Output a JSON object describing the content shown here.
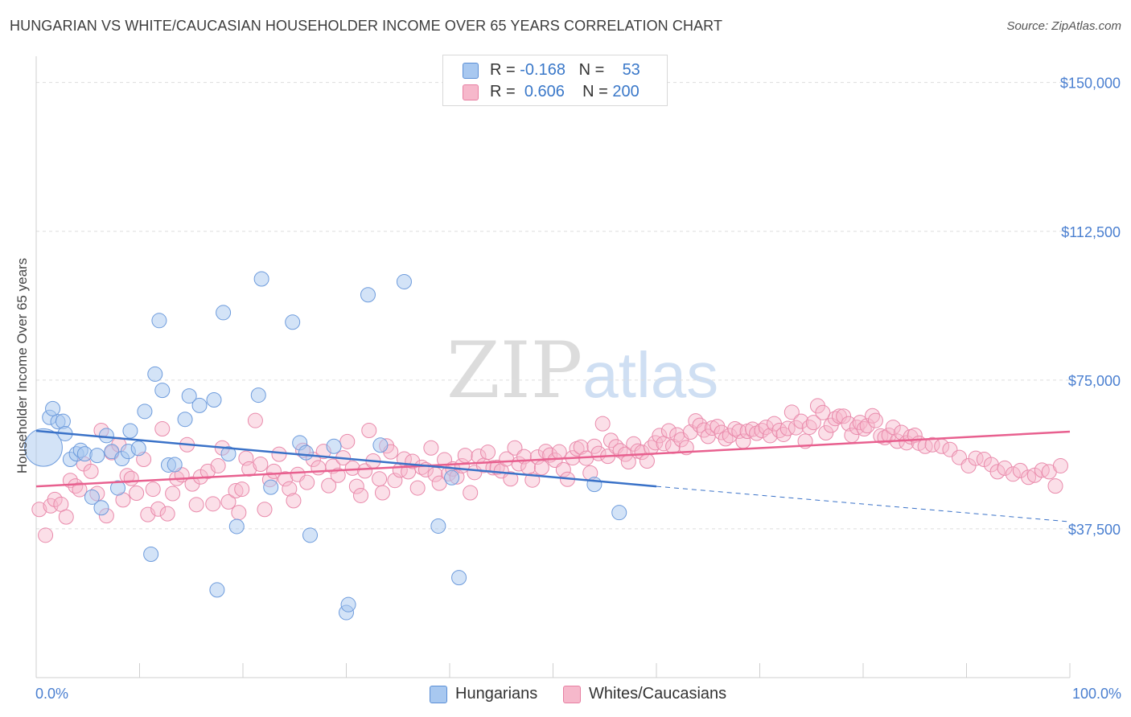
{
  "title": "HUNGARIAN VS WHITE/CAUCASIAN HOUSEHOLDER INCOME OVER 65 YEARS CORRELATION CHART",
  "source": "Source: ZipAtlas.com",
  "watermark": {
    "zip": "ZIP",
    "atlas": "atlas"
  },
  "legend": {
    "rows": [
      {
        "r_label": "R = ",
        "r_value": "-0.168",
        "n_label": "N = ",
        "n_value": "53",
        "color": "#a8c8f0",
        "border": "#5b8fd6"
      },
      {
        "r_label": "R = ",
        "r_value": "0.606",
        "n_label": "N = ",
        "n_value": "200",
        "color": "#f6b8cb",
        "border": "#e77fa2"
      }
    ]
  },
  "bottom_legend": [
    {
      "label": "Hungarians",
      "color": "#a8c8f0",
      "border": "#5b8fd6"
    },
    {
      "label": "Whites/Caucasians",
      "color": "#f6b8cb",
      "border": "#e77fa2"
    }
  ],
  "colors": {
    "blue": "#3a72c8",
    "pink": "#e8608f",
    "grid": "#dddddd",
    "tick_text": "#4a7fd0"
  },
  "chart_data": {
    "type": "scatter",
    "title": "HUNGARIAN VS WHITE/CAUCASIAN HOUSEHOLDER INCOME OVER 65 YEARS CORRELATION CHART",
    "xlabel": "",
    "ylabel": "Householder Income Over 65 years",
    "xlim": [
      0,
      100
    ],
    "ylim": [
      0,
      155000
    ],
    "x_ticks": [
      "0.0%",
      "100.0%"
    ],
    "y_ticks": [
      {
        "value": 37500,
        "label": "$37,500"
      },
      {
        "value": 75000,
        "label": "$75,000"
      },
      {
        "value": 112500,
        "label": "$112,500"
      },
      {
        "value": 150000,
        "label": "$150,000"
      }
    ],
    "grid": true,
    "series": [
      {
        "name": "Hungarians",
        "trend": {
          "x0": 0,
          "y0": 62200,
          "x1": 60,
          "y1": 48200,
          "dash_to_x": 100,
          "dash_to_y": 39300
        },
        "points": [
          [
            0.7,
            58000,
            2.6
          ],
          [
            1.3,
            65600,
            1.0
          ],
          [
            1.6,
            67800,
            1.0
          ],
          [
            2.1,
            64500,
            1.0
          ],
          [
            2.6,
            64600,
            1.0
          ],
          [
            2.8,
            61500,
            1.0
          ],
          [
            3.3,
            55000,
            1.0
          ],
          [
            3.9,
            56400,
            1.0
          ],
          [
            4.3,
            57300,
            1.0
          ],
          [
            4.7,
            56400,
            1.0
          ],
          [
            5.4,
            45500,
            1.0
          ],
          [
            5.9,
            56000,
            1.0
          ],
          [
            6.3,
            42800,
            1.0
          ],
          [
            6.8,
            61000,
            1.0
          ],
          [
            7.3,
            57000,
            1.0
          ],
          [
            7.9,
            47800,
            1.0
          ],
          [
            8.3,
            55200,
            1.0
          ],
          [
            8.9,
            57000,
            1.0
          ],
          [
            9.1,
            62200,
            1.0
          ],
          [
            9.9,
            57800,
            1.0
          ],
          [
            10.5,
            67100,
            1.0
          ],
          [
            11.1,
            31100,
            1.0
          ],
          [
            11.5,
            76500,
            1.0
          ],
          [
            11.9,
            90000,
            1.0
          ],
          [
            12.2,
            72400,
            1.0
          ],
          [
            12.8,
            53600,
            1.0
          ],
          [
            13.4,
            53700,
            1.0
          ],
          [
            14.4,
            65100,
            1.0
          ],
          [
            14.8,
            71000,
            1.0
          ],
          [
            15.8,
            68600,
            1.0
          ],
          [
            17.2,
            70000,
            1.0
          ],
          [
            17.5,
            22100,
            1.0
          ],
          [
            18.1,
            92000,
            1.0
          ],
          [
            18.6,
            56400,
            1.0
          ],
          [
            19.4,
            38100,
            1.0
          ],
          [
            21.5,
            71200,
            1.0
          ],
          [
            21.8,
            100500,
            1.0
          ],
          [
            22.7,
            48000,
            1.0
          ],
          [
            24.8,
            89600,
            1.0
          ],
          [
            25.5,
            59200,
            1.0
          ],
          [
            26.1,
            56700,
            1.0
          ],
          [
            26.5,
            35900,
            1.0
          ],
          [
            28.8,
            58300,
            1.0
          ],
          [
            30.0,
            16400,
            1.0
          ],
          [
            30.2,
            18400,
            1.0
          ],
          [
            32.1,
            96500,
            1.0
          ],
          [
            33.3,
            58600,
            1.0
          ],
          [
            35.6,
            99800,
            1.0
          ],
          [
            38.9,
            38200,
            1.0
          ],
          [
            40.2,
            50400,
            1.0
          ],
          [
            40.9,
            25200,
            1.0
          ],
          [
            54.0,
            48700,
            1.0
          ],
          [
            56.4,
            41600,
            1.0
          ]
        ]
      },
      {
        "name": "Whites/Caucasians",
        "trend": {
          "x0": 0,
          "y0": 48200,
          "x1": 100,
          "y1": 62000
        },
        "points": [
          [
            0.3,
            42400
          ],
          [
            0.9,
            35900
          ],
          [
            1.4,
            43300
          ],
          [
            1.8,
            44900
          ],
          [
            2.4,
            43700
          ],
          [
            2.9,
            40500
          ],
          [
            3.3,
            49700
          ],
          [
            3.8,
            48300
          ],
          [
            4.2,
            47400
          ],
          [
            4.6,
            53900
          ],
          [
            5.3,
            52000
          ],
          [
            5.9,
            46400
          ],
          [
            6.3,
            62300
          ],
          [
            6.8,
            40800
          ],
          [
            7.3,
            56700
          ],
          [
            8.0,
            58700
          ],
          [
            8.4,
            44800
          ],
          [
            8.8,
            50900
          ],
          [
            9.2,
            50200
          ],
          [
            9.7,
            46500
          ],
          [
            10.4,
            55000
          ],
          [
            10.8,
            41100
          ],
          [
            11.3,
            47500
          ],
          [
            11.8,
            42500
          ],
          [
            12.2,
            62700
          ],
          [
            12.7,
            41300
          ],
          [
            13.2,
            46400
          ],
          [
            13.6,
            50200
          ],
          [
            14.1,
            51100
          ],
          [
            14.6,
            58700
          ],
          [
            15.1,
            48800
          ],
          [
            15.5,
            43600
          ],
          [
            15.9,
            50600
          ],
          [
            16.6,
            52000
          ],
          [
            17.1,
            43800
          ],
          [
            17.6,
            53400
          ],
          [
            18.0,
            57900
          ],
          [
            18.6,
            44300
          ],
          [
            19.3,
            47100
          ],
          [
            19.9,
            47500
          ],
          [
            19.6,
            41600
          ],
          [
            20.3,
            55300
          ],
          [
            20.6,
            52600
          ],
          [
            21.2,
            64800
          ],
          [
            21.7,
            53800
          ],
          [
            22.1,
            42400
          ],
          [
            22.6,
            49900
          ],
          [
            23.0,
            52000
          ],
          [
            23.5,
            56300
          ],
          [
            24.1,
            50100
          ],
          [
            24.5,
            47600
          ],
          [
            24.9,
            44600
          ],
          [
            25.3,
            51200
          ],
          [
            25.8,
            57300
          ],
          [
            26.2,
            49200
          ],
          [
            26.8,
            55000
          ],
          [
            27.3,
            52900
          ],
          [
            27.8,
            57000
          ],
          [
            28.3,
            48400
          ],
          [
            28.7,
            53300
          ],
          [
            29.2,
            51000
          ],
          [
            29.7,
            55400
          ],
          [
            30.1,
            59500
          ],
          [
            30.6,
            52800
          ],
          [
            31.0,
            48200
          ],
          [
            31.4,
            45900
          ],
          [
            31.8,
            52100
          ],
          [
            32.2,
            62300
          ],
          [
            32.6,
            54600
          ],
          [
            33.2,
            50100
          ],
          [
            33.5,
            46600
          ],
          [
            33.9,
            58400
          ],
          [
            34.3,
            56900
          ],
          [
            34.7,
            49700
          ],
          [
            35.2,
            52300
          ],
          [
            35.6,
            55100
          ],
          [
            36.0,
            51900
          ],
          [
            36.4,
            54500
          ],
          [
            36.9,
            47800
          ],
          [
            37.3,
            53000
          ],
          [
            37.7,
            52400
          ],
          [
            38.2,
            57900
          ],
          [
            38.6,
            51200
          ],
          [
            39.0,
            49000
          ],
          [
            39.5,
            54900
          ],
          [
            39.9,
            51400
          ],
          [
            40.3,
            52600
          ],
          [
            40.7,
            50600
          ],
          [
            41.2,
            53400
          ],
          [
            41.5,
            56000
          ],
          [
            42.0,
            46600
          ],
          [
            42.4,
            51700
          ],
          [
            42.8,
            55800
          ],
          [
            43.3,
            53500
          ],
          [
            43.7,
            56800
          ],
          [
            44.2,
            52900
          ],
          [
            44.6,
            53000
          ],
          [
            45.0,
            52100
          ],
          [
            45.5,
            55100
          ],
          [
            45.9,
            50100
          ],
          [
            46.3,
            57900
          ],
          [
            46.7,
            53900
          ],
          [
            47.2,
            55700
          ],
          [
            47.6,
            53000
          ],
          [
            48.0,
            49800
          ],
          [
            48.5,
            55600
          ],
          [
            48.9,
            52900
          ],
          [
            49.3,
            57000
          ],
          [
            49.7,
            56100
          ],
          [
            50.2,
            54800
          ],
          [
            50.6,
            56900
          ],
          [
            51.0,
            52400
          ],
          [
            51.4,
            50000
          ],
          [
            51.9,
            55400
          ],
          [
            52.3,
            57700
          ],
          [
            52.7,
            58100
          ],
          [
            53.2,
            55300
          ],
          [
            53.6,
            51600
          ],
          [
            54.0,
            58300
          ],
          [
            54.4,
            56500
          ],
          [
            54.8,
            64000
          ],
          [
            55.3,
            55800
          ],
          [
            55.6,
            59800
          ],
          [
            56.1,
            58200
          ],
          [
            56.5,
            57200
          ],
          [
            57.0,
            56300
          ],
          [
            57.3,
            54400
          ],
          [
            57.8,
            58900
          ],
          [
            58.2,
            57100
          ],
          [
            58.6,
            56800
          ],
          [
            59.1,
            54600
          ],
          [
            59.5,
            58000
          ],
          [
            59.9,
            59200
          ],
          [
            60.3,
            61000
          ],
          [
            60.7,
            59000
          ],
          [
            61.2,
            62200
          ],
          [
            61.6,
            58300
          ],
          [
            62.0,
            61200
          ],
          [
            62.4,
            60000
          ],
          [
            62.9,
            58000
          ],
          [
            63.3,
            61900
          ],
          [
            63.8,
            64700
          ],
          [
            64.2,
            63600
          ],
          [
            64.6,
            62400
          ],
          [
            65.0,
            60800
          ],
          [
            65.4,
            62900
          ],
          [
            65.9,
            63300
          ],
          [
            66.3,
            61800
          ],
          [
            66.7,
            60200
          ],
          [
            67.1,
            61000
          ],
          [
            67.6,
            62700
          ],
          [
            68.0,
            62100
          ],
          [
            68.4,
            59600
          ],
          [
            68.8,
            62100
          ],
          [
            69.3,
            62600
          ],
          [
            69.7,
            61600
          ],
          [
            70.2,
            62300
          ],
          [
            70.6,
            63100
          ],
          [
            71.0,
            61000
          ],
          [
            71.4,
            64000
          ],
          [
            71.9,
            62300
          ],
          [
            72.3,
            61300
          ],
          [
            72.7,
            62800
          ],
          [
            73.1,
            66900
          ],
          [
            73.5,
            63000
          ],
          [
            74.0,
            64600
          ],
          [
            74.4,
            59600
          ],
          [
            74.8,
            63100
          ],
          [
            75.2,
            64300
          ],
          [
            75.6,
            68500
          ],
          [
            76.1,
            66800
          ],
          [
            76.4,
            61700
          ],
          [
            76.9,
            63600
          ],
          [
            77.3,
            65300
          ],
          [
            77.7,
            65900
          ],
          [
            78.1,
            65900
          ],
          [
            78.6,
            64000
          ],
          [
            78.9,
            61100
          ],
          [
            79.4,
            63100
          ],
          [
            79.7,
            64300
          ],
          [
            80.1,
            62700
          ],
          [
            80.4,
            63500
          ],
          [
            80.9,
            66000
          ],
          [
            81.2,
            64800
          ],
          [
            81.7,
            60900
          ],
          [
            82.1,
            60500
          ],
          [
            82.5,
            61100
          ],
          [
            82.9,
            63100
          ],
          [
            83.3,
            59600
          ],
          [
            83.7,
            61800
          ],
          [
            84.2,
            59200
          ],
          [
            84.6,
            60700
          ],
          [
            85.0,
            61100
          ],
          [
            85.4,
            59100
          ],
          [
            86.0,
            58300
          ],
          [
            86.7,
            58700
          ],
          [
            87.6,
            58300
          ],
          [
            88.4,
            57500
          ],
          [
            89.3,
            55500
          ],
          [
            90.2,
            53400
          ],
          [
            90.9,
            55300
          ],
          [
            91.7,
            55000
          ],
          [
            92.4,
            53700
          ],
          [
            93.0,
            51900
          ],
          [
            93.7,
            52800
          ],
          [
            94.5,
            51300
          ],
          [
            95.2,
            52200
          ],
          [
            96.0,
            50500
          ],
          [
            96.6,
            51000
          ],
          [
            97.3,
            52300
          ],
          [
            98.0,
            51900
          ],
          [
            98.6,
            48300
          ],
          [
            99.1,
            53400
          ]
        ]
      }
    ]
  },
  "axis_labels": {
    "x_start": "0.0%",
    "x_end": "100.0%",
    "ylabel": "Householder Income Over 65 years"
  }
}
